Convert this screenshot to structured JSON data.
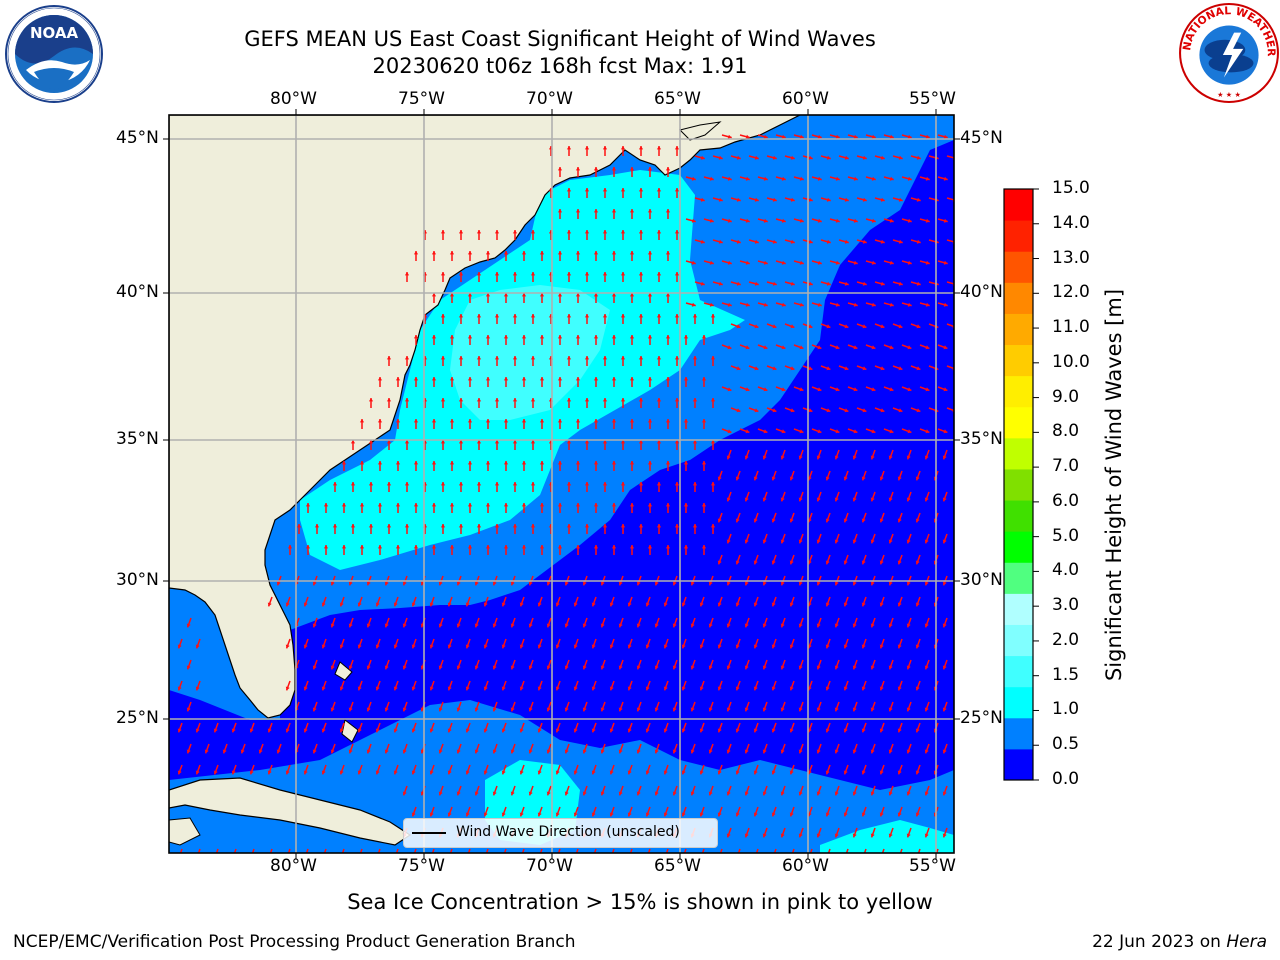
{
  "title": {
    "line1": "GEFS MEAN US East Coast Significant Height of Wind Waves",
    "line2": "20230620 t06z 168h fcst   Max: 1.91"
  },
  "logos": {
    "left": "NOAA",
    "right": "NATIONAL WEATHER SERVICE"
  },
  "axes": {
    "lon_ticks": [
      "80°W",
      "75°W",
      "70°W",
      "65°W",
      "60°W",
      "55°W"
    ],
    "lat_ticks": [
      "45°N",
      "40°N",
      "35°N",
      "30°N",
      "25°N"
    ]
  },
  "colorbar": {
    "label": "Significant Height of Wind Waves [m]",
    "ticks": [
      "15.0",
      "14.0",
      "13.0",
      "12.0",
      "11.0",
      "10.0",
      "9.0",
      "8.0",
      "7.0",
      "6.0",
      "5.0",
      "4.0",
      "3.0",
      "2.0",
      "1.5",
      "1.0",
      "0.5",
      "0.0"
    ],
    "colors": [
      "#0000ff",
      "#0080ff",
      "#00ffff",
      "#40ffff",
      "#80ffff",
      "#b0ffff",
      "#50ff80",
      "#00ff00",
      "#40e000",
      "#80e000",
      "#c0ff00",
      "#ffff00",
      "#ffee00",
      "#ffcc00",
      "#ffaa00",
      "#ff8800",
      "#ff5500",
      "#ff2200",
      "#ff0000"
    ]
  },
  "legend": {
    "text": "Wind Wave Direction (unscaled)"
  },
  "note": "Sea Ice Concentration > 15% is shown in pink to yellow",
  "footer": {
    "credit": "NCEP/EMC/Verification Post Processing Product Generation Branch",
    "date": "22 Jun 2023 on ",
    "machine": "Hera"
  },
  "chart_data": {
    "type": "heatmap",
    "title": "GEFS MEAN US East Coast Significant Height of Wind Waves",
    "subtitle": "20230620 t06z 168h fcst   Max: 1.91",
    "xlim": [
      -85,
      -54
    ],
    "ylim": [
      20.5,
      45.8
    ],
    "max_value": 1.91,
    "units": "m",
    "colorbar_levels": [
      0.0,
      0.5,
      1.0,
      1.5,
      2.0,
      3.0,
      4.0,
      5.0,
      6.0,
      7.0,
      8.0,
      9.0,
      10.0,
      11.0,
      12.0,
      13.0,
      14.0,
      15.0
    ],
    "regions": [
      {
        "area": "Gulf of Maine / Mid-Atlantic shelf to ~36N",
        "range": "1.0-1.5"
      },
      {
        "area": "Offshore Carolinas / South Atlantic Bight",
        "range": "1.0-1.5"
      },
      {
        "area": "Open Atlantic south of 35N",
        "range": "0.0-0.5"
      },
      {
        "area": "Caribbean / south of Bahamas",
        "range": "0.5-1.5"
      }
    ],
    "arrow_direction_north_of_31N": "northward (from south)",
    "arrow_direction_south_of_31N": "southward/southwest (from northeast)",
    "grid": true
  }
}
